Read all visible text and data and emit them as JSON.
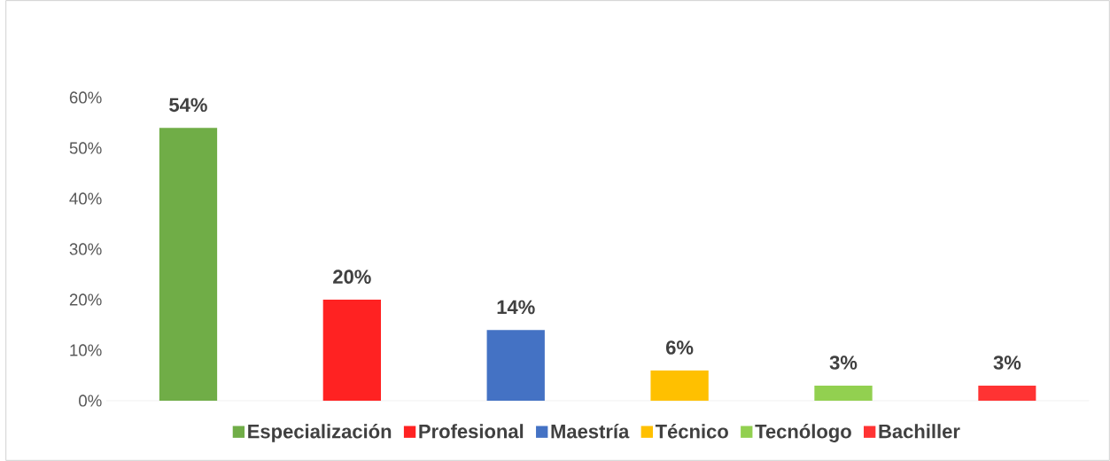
{
  "chart_data": {
    "type": "bar",
    "categories": [
      null
    ],
    "series": [
      {
        "name": "Especialización",
        "color": "#70ad47",
        "values": [
          54
        ],
        "value_labels": [
          "54%"
        ]
      },
      {
        "name": "Profesional",
        "color": "#ff2222",
        "values": [
          20
        ],
        "value_labels": [
          "20%"
        ]
      },
      {
        "name": "Maestría",
        "color": "#4472c4",
        "values": [
          14
        ],
        "value_labels": [
          "14%"
        ]
      },
      {
        "name": "Técnico",
        "color": "#ffc000",
        "values": [
          6
        ],
        "value_labels": [
          "6%"
        ]
      },
      {
        "name": "Tecnólogo",
        "color": "#92d050",
        "values": [
          3
        ],
        "value_labels": [
          "3%"
        ]
      },
      {
        "name": "Bachiller",
        "color": "#ff3333",
        "values": [
          3
        ],
        "value_labels": [
          "3%"
        ]
      }
    ],
    "ylim": [
      0,
      60
    ],
    "yticks": [
      {
        "value": 0,
        "label": "0%"
      },
      {
        "value": 10,
        "label": "10%"
      },
      {
        "value": 20,
        "label": "20%"
      },
      {
        "value": 30,
        "label": "30%"
      },
      {
        "value": 40,
        "label": "40%"
      },
      {
        "value": 50,
        "label": "50%"
      },
      {
        "value": 60,
        "label": "60%"
      }
    ],
    "legend": "bottom"
  }
}
